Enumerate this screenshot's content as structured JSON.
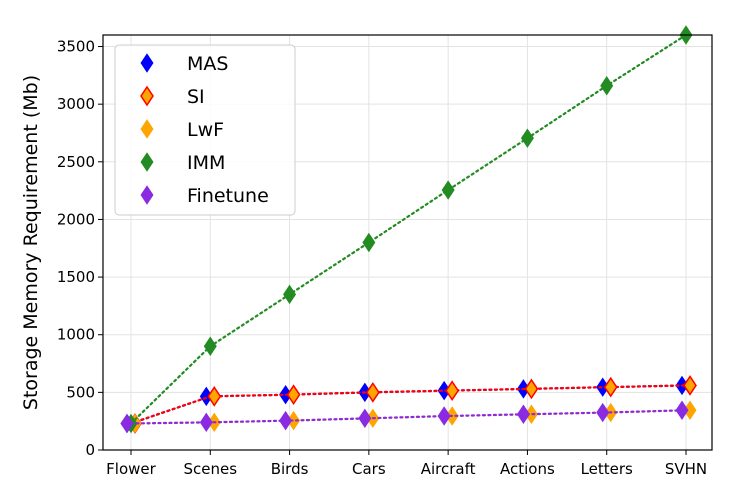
{
  "chart_data": {
    "type": "line",
    "title": "",
    "xlabel": "",
    "ylabel": "Storage Memory Requirement (Mb)",
    "categories": [
      "Flower",
      "Scenes",
      "Birds",
      "Cars",
      "Aircraft",
      "Actions",
      "Letters",
      "SVHN"
    ],
    "ylim": [
      0,
      3600
    ],
    "yticks": [
      0,
      500,
      1000,
      1500,
      2000,
      2500,
      3000,
      3500
    ],
    "grid": true,
    "legend_position": "top-left",
    "line_style": "dotted",
    "marker": "diamond",
    "series": [
      {
        "name": "MAS",
        "color": "#0000ff",
        "values": [
          230,
          465,
          480,
          500,
          515,
          530,
          545,
          560
        ]
      },
      {
        "name": "SI",
        "color": "#ff0000",
        "fill": "#ffa500",
        "values": [
          230,
          465,
          480,
          500,
          515,
          530,
          545,
          560
        ]
      },
      {
        "name": "LwF",
        "color": "#ffa500",
        "values": [
          230,
          240,
          255,
          275,
          295,
          310,
          325,
          345
        ]
      },
      {
        "name": "IMM",
        "color": "#228b22",
        "values": [
          230,
          900,
          1350,
          1800,
          2255,
          2705,
          3160,
          3600
        ]
      },
      {
        "name": "Finetune",
        "color": "#8a2be2",
        "values": [
          230,
          240,
          255,
          275,
          295,
          310,
          325,
          345
        ]
      }
    ]
  }
}
